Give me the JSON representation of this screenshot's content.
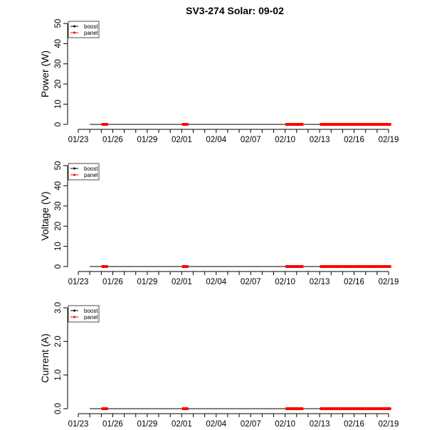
{
  "title": "SV3-274 Solar: 09-02",
  "colors": {
    "boost": "#000000",
    "panel": "#ff0000"
  },
  "chart_data": [
    {
      "type": "line",
      "ylabel": "Power (W)",
      "ylim": [
        0,
        50
      ],
      "yticks": [
        "0",
        "10",
        "20",
        "30",
        "40",
        "50"
      ],
      "legend": {
        "position": "top-left",
        "entries": [
          "boost",
          "panel"
        ]
      },
      "x_tick_labels": [
        "01/23",
        "01/26",
        "01/29",
        "02/01",
        "02/04",
        "02/07",
        "02/10",
        "02/13",
        "02/16",
        "02/19"
      ],
      "series": [
        {
          "name": "boost",
          "color": "#000000",
          "segments": [
            [
              "01/24",
              "02/19"
            ]
          ],
          "value": 0
        },
        {
          "name": "panel",
          "color": "#ff0000",
          "segments": [
            [
              "01/24",
              "01/25"
            ],
            [
              "01/31",
              "02/01"
            ],
            [
              "02/09",
              "02/11"
            ],
            [
              "02/12",
              "02/19"
            ]
          ],
          "value": 0
        }
      ]
    },
    {
      "type": "line",
      "ylabel": "Voltage (V)",
      "ylim": [
        0,
        50
      ],
      "yticks": [
        "0",
        "10",
        "20",
        "30",
        "40",
        "50"
      ],
      "legend": {
        "position": "top-left",
        "entries": [
          "boost",
          "panel"
        ]
      },
      "x_tick_labels": [
        "01/23",
        "01/26",
        "01/29",
        "02/01",
        "02/04",
        "02/07",
        "02/10",
        "02/13",
        "02/16",
        "02/19"
      ],
      "series": [
        {
          "name": "boost",
          "color": "#000000",
          "segments": [
            [
              "01/24",
              "02/19"
            ]
          ],
          "value": 0
        },
        {
          "name": "panel",
          "color": "#ff0000",
          "segments": [
            [
              "01/24",
              "01/25"
            ],
            [
              "01/31",
              "02/01"
            ],
            [
              "02/09",
              "02/11"
            ],
            [
              "02/12",
              "02/19"
            ]
          ],
          "value": 0
        }
      ]
    },
    {
      "type": "line",
      "ylabel": "Current (A)",
      "ylim": [
        0,
        3
      ],
      "yticks": [
        "0.0",
        "1.0",
        "2.0",
        "3.0"
      ],
      "legend": {
        "position": "top-left",
        "entries": [
          "boost",
          "panel"
        ]
      },
      "x_tick_labels": [
        "01/23",
        "01/26",
        "01/29",
        "02/01",
        "02/04",
        "02/07",
        "02/10",
        "02/13",
        "02/16",
        "02/19"
      ],
      "series": [
        {
          "name": "boost",
          "color": "#000000",
          "segments": [
            [
              "01/24",
              "02/19"
            ]
          ],
          "value": 0
        },
        {
          "name": "panel",
          "color": "#ff0000",
          "segments": [
            [
              "01/24",
              "01/25"
            ],
            [
              "01/31",
              "02/01"
            ],
            [
              "02/09",
              "02/11"
            ],
            [
              "02/12",
              "02/19"
            ]
          ],
          "value": 0
        }
      ]
    }
  ]
}
